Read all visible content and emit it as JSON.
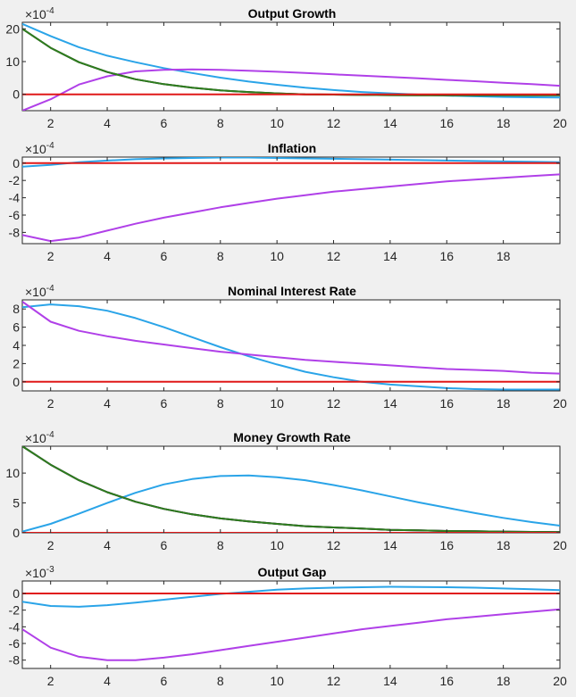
{
  "colors": {
    "blue": "#2aa4e8",
    "purple": "#b040e8",
    "red": "#e01818",
    "green": "#2e7d1e",
    "figure_bg": "#f0f0f0",
    "axes_bg": "#ffffff"
  },
  "chart_data": [
    {
      "type": "line",
      "title": "Output Growth",
      "multiplier": {
        "base": "×10",
        "exponent": "-4"
      },
      "xlim": [
        1,
        20
      ],
      "ylim": [
        -5,
        22
      ],
      "xticks": [
        2,
        4,
        6,
        8,
        10,
        12,
        14,
        16,
        18,
        20
      ],
      "yticks": [
        0,
        10,
        20
      ],
      "x": [
        1,
        2,
        3,
        4,
        5,
        6,
        7,
        8,
        9,
        10,
        11,
        12,
        13,
        14,
        15,
        16,
        17,
        18,
        19,
        20
      ],
      "series": [
        {
          "color": "blue",
          "values": [
            21.5,
            17.8,
            14.4,
            11.8,
            9.8,
            8.0,
            6.5,
            5.1,
            3.9,
            2.9,
            2.0,
            1.3,
            0.7,
            0.3,
            -0.1,
            -0.4,
            -0.6,
            -0.8,
            -0.9,
            -1.0
          ]
        },
        {
          "color": "purple",
          "values": [
            -5,
            -1.5,
            3.0,
            5.5,
            7.0,
            7.5,
            7.6,
            7.5,
            7.2,
            6.9,
            6.5,
            6.1,
            5.7,
            5.3,
            4.9,
            4.4,
            4.0,
            3.5,
            3.1,
            2.6
          ]
        },
        {
          "color": "green",
          "values": [
            20,
            14.2,
            9.8,
            6.8,
            4.6,
            3.1,
            2.0,
            1.2,
            0.7,
            0.3,
            0.0,
            -0.1,
            -0.2,
            -0.25,
            -0.3,
            -0.3,
            -0.3,
            -0.3,
            -0.3,
            -0.3
          ]
        },
        {
          "color": "red",
          "values": [
            0,
            0,
            0,
            0,
            0,
            0,
            0,
            0,
            0,
            0,
            0,
            0,
            0,
            0,
            0,
            0,
            0,
            0,
            0,
            0
          ]
        }
      ]
    },
    {
      "type": "line",
      "title": "Inflation",
      "multiplier": {
        "base": "×10",
        "exponent": "-4"
      },
      "xlim": [
        1,
        20
      ],
      "ylim": [
        -9.3,
        0.7
      ],
      "xticks": [
        2,
        4,
        6,
        8,
        10,
        12,
        14,
        16,
        18
      ],
      "yticks": [
        0,
        -2,
        -4,
        -6,
        -8
      ],
      "x": [
        1,
        2,
        3,
        4,
        5,
        6,
        7,
        8,
        9,
        10,
        11,
        12,
        13,
        14,
        15,
        16,
        17,
        18,
        19,
        20
      ],
      "series": [
        {
          "color": "blue",
          "values": [
            -0.4,
            -0.2,
            0.1,
            0.3,
            0.45,
            0.55,
            0.6,
            0.65,
            0.65,
            0.6,
            0.55,
            0.5,
            0.45,
            0.4,
            0.35,
            0.3,
            0.25,
            0.2,
            0.15,
            0.1
          ]
        },
        {
          "color": "purple",
          "values": [
            -8.3,
            -9.0,
            -8.6,
            -7.8,
            -7.0,
            -6.3,
            -5.7,
            -5.1,
            -4.6,
            -4.1,
            -3.7,
            -3.3,
            -3.0,
            -2.7,
            -2.4,
            -2.1,
            -1.9,
            -1.7,
            -1.5,
            -1.3
          ]
        },
        {
          "color": "red",
          "values": [
            0,
            0,
            0,
            0,
            0,
            0,
            0,
            0,
            0,
            0,
            0,
            0,
            0,
            0,
            0,
            0,
            0,
            0,
            0,
            0
          ]
        }
      ]
    },
    {
      "type": "line",
      "title": "Nominal Interest Rate",
      "multiplier": {
        "base": "×10",
        "exponent": "-4"
      },
      "xlim": [
        1,
        20
      ],
      "ylim": [
        -1.0,
        9.0
      ],
      "xticks": [
        2,
        4,
        6,
        8,
        10,
        12,
        14,
        16,
        18,
        20
      ],
      "yticks": [
        0,
        2,
        4,
        6,
        8
      ],
      "x": [
        1,
        2,
        3,
        4,
        5,
        6,
        7,
        8,
        9,
        10,
        11,
        12,
        13,
        14,
        15,
        16,
        17,
        18,
        19,
        20
      ],
      "series": [
        {
          "color": "blue",
          "values": [
            8.2,
            8.5,
            8.3,
            7.8,
            7.0,
            6.0,
            4.9,
            3.8,
            2.8,
            1.9,
            1.1,
            0.5,
            0.0,
            -0.3,
            -0.5,
            -0.7,
            -0.8,
            -0.85,
            -0.85,
            -0.85
          ]
        },
        {
          "color": "purple",
          "values": [
            8.8,
            6.6,
            5.6,
            5.0,
            4.5,
            4.1,
            3.7,
            3.3,
            3.0,
            2.7,
            2.4,
            2.2,
            2.0,
            1.8,
            1.6,
            1.4,
            1.3,
            1.2,
            1.0,
            0.9
          ]
        },
        {
          "color": "red",
          "values": [
            0,
            0,
            0,
            0,
            0,
            0,
            0,
            0,
            0,
            0,
            0,
            0,
            0,
            0,
            0,
            0,
            0,
            0,
            0,
            0
          ]
        }
      ]
    },
    {
      "type": "line",
      "title": "Money Growth Rate",
      "multiplier": {
        "base": "×10",
        "exponent": "-4"
      },
      "xlim": [
        1,
        20
      ],
      "ylim": [
        0,
        14.5
      ],
      "xticks": [
        2,
        4,
        6,
        8,
        10,
        12,
        14,
        16,
        18,
        20
      ],
      "yticks": [
        0,
        5,
        10
      ],
      "x": [
        1,
        2,
        3,
        4,
        5,
        6,
        7,
        8,
        9,
        10,
        11,
        12,
        13,
        14,
        15,
        16,
        17,
        18,
        19,
        20
      ],
      "series": [
        {
          "color": "blue",
          "values": [
            0.2,
            1.5,
            3.2,
            5.0,
            6.7,
            8.1,
            9.0,
            9.5,
            9.6,
            9.3,
            8.8,
            8.0,
            7.1,
            6.1,
            5.1,
            4.2,
            3.3,
            2.5,
            1.8,
            1.2
          ]
        },
        {
          "color": "purple",
          "values": [
            14.5,
            11.4,
            8.8,
            6.8,
            5.2,
            4.0,
            3.1,
            2.4,
            1.9,
            1.5,
            1.1,
            0.9,
            0.7,
            0.5,
            0.4,
            0.3,
            0.25,
            0.2,
            0.15,
            0.1
          ]
        },
        {
          "color": "green",
          "values": [
            14.5,
            11.4,
            8.8,
            6.8,
            5.2,
            4.0,
            3.1,
            2.4,
            1.9,
            1.5,
            1.1,
            0.9,
            0.7,
            0.5,
            0.4,
            0.3,
            0.25,
            0.2,
            0.15,
            0.1
          ]
        },
        {
          "color": "red",
          "values": [
            0,
            0,
            0,
            0,
            0,
            0,
            0,
            0,
            0,
            0,
            0,
            0,
            0,
            0,
            0,
            0,
            0,
            0,
            0,
            0
          ]
        }
      ]
    },
    {
      "type": "line",
      "title": "Output Gap",
      "multiplier": {
        "base": "×10",
        "exponent": "-3"
      },
      "xlim": [
        1,
        20
      ],
      "ylim": [
        -9.0,
        1.5
      ],
      "xticks": [
        2,
        4,
        6,
        8,
        10,
        12,
        14,
        16,
        18,
        20
      ],
      "yticks": [
        0,
        -2,
        -4,
        -6,
        -8
      ],
      "x": [
        1,
        2,
        3,
        4,
        5,
        6,
        7,
        8,
        9,
        10,
        11,
        12,
        13,
        14,
        15,
        16,
        17,
        18,
        19,
        20
      ],
      "series": [
        {
          "color": "blue",
          "values": [
            -1.0,
            -1.5,
            -1.6,
            -1.4,
            -1.1,
            -0.75,
            -0.4,
            -0.05,
            0.2,
            0.45,
            0.6,
            0.7,
            0.75,
            0.8,
            0.78,
            0.75,
            0.7,
            0.6,
            0.5,
            0.4
          ]
        },
        {
          "color": "purple",
          "values": [
            -4.3,
            -6.5,
            -7.6,
            -8.0,
            -8.0,
            -7.7,
            -7.3,
            -6.8,
            -6.3,
            -5.8,
            -5.3,
            -4.8,
            -4.3,
            -3.9,
            -3.5,
            -3.1,
            -2.8,
            -2.5,
            -2.2,
            -1.9
          ]
        },
        {
          "color": "red",
          "values": [
            0,
            0,
            0,
            0,
            0,
            0,
            0,
            0,
            0,
            0,
            0,
            0,
            0,
            0,
            0,
            0,
            0,
            0,
            0,
            0
          ]
        }
      ]
    }
  ]
}
